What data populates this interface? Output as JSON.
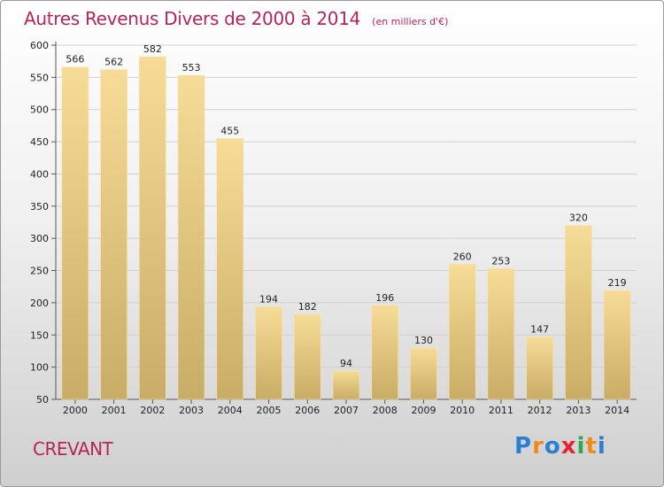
{
  "title": "Autres Revenus Divers de 2000 à 2014",
  "subtitle": "(en milliers d'€)",
  "place": "CREVANT",
  "logo": {
    "text": "Proxiti",
    "letters": [
      {
        "ch": "P",
        "color": "#2a7fd4"
      },
      {
        "ch": "r",
        "color": "#f08a1c"
      },
      {
        "ch": "o",
        "color": "#2a7fd4"
      },
      {
        "ch": "x",
        "color": "#e8232f"
      },
      {
        "ch": "i",
        "color": "#2fa84f"
      },
      {
        "ch": "t",
        "color": "#f08a1c"
      },
      {
        "ch": "i",
        "color": "#2a7fd4"
      }
    ]
  },
  "colors": {
    "bar_top": "#f7dc97",
    "bar_bottom": "#c9ac65",
    "accent": "#b8245a"
  },
  "chart_data": {
    "type": "bar",
    "categories": [
      "2000",
      "2001",
      "2002",
      "2003",
      "2004",
      "2005",
      "2006",
      "2007",
      "2008",
      "2009",
      "2010",
      "2011",
      "2012",
      "2013",
      "2014"
    ],
    "values": [
      566,
      562,
      582,
      553,
      455,
      194,
      182,
      94,
      196,
      130,
      260,
      253,
      147,
      320,
      219
    ],
    "title": "Autres Revenus Divers de 2000 à 2014",
    "xlabel": "",
    "ylabel": "",
    "ylim": [
      50,
      600
    ],
    "yticks": [
      50,
      100,
      150,
      200,
      250,
      300,
      350,
      400,
      450,
      500,
      550,
      600
    ],
    "grid": true,
    "data_labels": true
  }
}
